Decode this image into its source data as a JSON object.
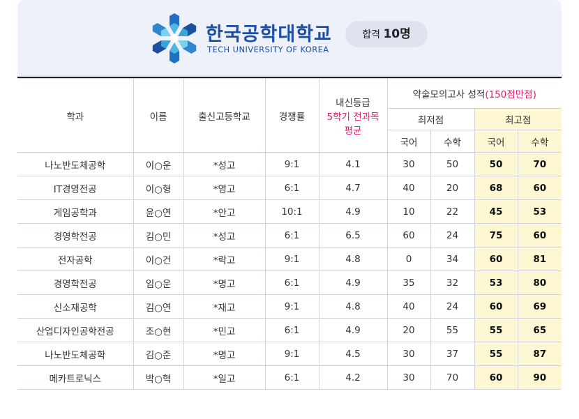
{
  "header": {
    "brand_kr": "한국공학대학교",
    "brand_en": "TECH UNIVERSITY OF KOREA",
    "pass_label": "합격",
    "pass_count": "10명",
    "logo_icon": "hexagon-snowflake-logo-icon"
  },
  "colors": {
    "brand": "#1f4fa3",
    "accent": "#e0186c",
    "highlight": "#fdf8d3",
    "card_bg": "#eef1fa"
  },
  "table": {
    "headers": {
      "dept": "학과",
      "name": "이름",
      "school": "출신고등학교",
      "ratio": "경쟁률",
      "grade_line1": "내신등급",
      "grade_line2": "5학기 전과목",
      "grade_line3": "평균",
      "mock_main": "약술모의고사 성적",
      "mock_note": "(150점만점)",
      "min_score": "최저점",
      "max_score": "최고점",
      "korean": "국어",
      "math": "수학"
    },
    "rows": [
      {
        "dept": "나노반도체공학",
        "name": "이○운",
        "school": "*성고",
        "ratio": "9:1",
        "grade": "4.1",
        "min_kor": "30",
        "min_math": "50",
        "max_kor": "50",
        "max_math": "70"
      },
      {
        "dept": "IT경영전공",
        "name": "이○형",
        "school": "*영고",
        "ratio": "6:1",
        "grade": "4.7",
        "min_kor": "40",
        "min_math": "20",
        "max_kor": "68",
        "max_math": "60"
      },
      {
        "dept": "게임공학과",
        "name": "윤○연",
        "school": "*안고",
        "ratio": "10:1",
        "grade": "4.9",
        "min_kor": "10",
        "min_math": "22",
        "max_kor": "45",
        "max_math": "53"
      },
      {
        "dept": "경영학전공",
        "name": "김○민",
        "school": "*성고",
        "ratio": "6:1",
        "grade": "6.5",
        "min_kor": "60",
        "min_math": "24",
        "max_kor": "75",
        "max_math": "60"
      },
      {
        "dept": "전자공학",
        "name": "이○건",
        "school": "*락고",
        "ratio": "9:1",
        "grade": "4.8",
        "min_kor": "0",
        "min_math": "34",
        "max_kor": "60",
        "max_math": "81"
      },
      {
        "dept": "경영학전공",
        "name": "임○운",
        "school": "*명고",
        "ratio": "6:1",
        "grade": "4.9",
        "min_kor": "35",
        "min_math": "32",
        "max_kor": "53",
        "max_math": "80"
      },
      {
        "dept": "신소재공학",
        "name": "김○연",
        "school": "*재고",
        "ratio": "9:1",
        "grade": "4.8",
        "min_kor": "40",
        "min_math": "24",
        "max_kor": "60",
        "max_math": "69"
      },
      {
        "dept": "산업디자인공학전공",
        "name": "조○현",
        "school": "*민고",
        "ratio": "6:1",
        "grade": "4.9",
        "min_kor": "20",
        "min_math": "55",
        "max_kor": "55",
        "max_math": "65"
      },
      {
        "dept": "나노반도체공학",
        "name": "김○준",
        "school": "*명고",
        "ratio": "9:1",
        "grade": "4.5",
        "min_kor": "30",
        "min_math": "37",
        "max_kor": "55",
        "max_math": "87"
      },
      {
        "dept": "메카트로닉스",
        "name": "박○혁",
        "school": "*일고",
        "ratio": "6:1",
        "grade": "4.2",
        "min_kor": "30",
        "min_math": "70",
        "max_kor": "60",
        "max_math": "90"
      }
    ]
  }
}
